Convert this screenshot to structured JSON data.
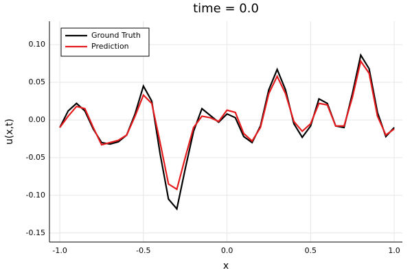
{
  "chart_data": {
    "type": "line",
    "title": "time = 0.0",
    "x_label": "x",
    "y_label": "u(x,t)",
    "x": [
      -1.0,
      -0.95,
      -0.9,
      -0.85,
      -0.8,
      -0.75,
      -0.7,
      -0.65,
      -0.6,
      -0.55,
      -0.5,
      -0.45,
      -0.4,
      -0.35,
      -0.3,
      -0.25,
      -0.2,
      -0.15,
      -0.1,
      -0.05,
      0.0,
      0.05,
      0.1,
      0.15,
      0.2,
      0.25,
      0.3,
      0.35,
      0.4,
      0.45,
      0.5,
      0.55,
      0.6,
      0.65,
      0.7,
      0.75,
      0.8,
      0.85,
      0.9,
      0.95,
      1.0
    ],
    "series": [
      {
        "name": "Ground Truth",
        "color": "#000000",
        "values": [
          -0.01,
          0.012,
          0.022,
          0.012,
          -0.012,
          -0.03,
          -0.032,
          -0.029,
          -0.02,
          0.008,
          0.045,
          0.025,
          -0.045,
          -0.105,
          -0.118,
          -0.065,
          -0.015,
          0.015,
          0.006,
          -0.003,
          0.008,
          0.003,
          -0.022,
          -0.03,
          -0.008,
          0.04,
          0.067,
          0.04,
          -0.005,
          -0.023,
          -0.008,
          0.028,
          0.022,
          -0.008,
          -0.01,
          0.035,
          0.086,
          0.068,
          0.01,
          -0.022,
          -0.01
        ]
      },
      {
        "name": "Prediction",
        "color": "#e41a1c",
        "values": [
          -0.01,
          0.005,
          0.018,
          0.015,
          -0.01,
          -0.033,
          -0.03,
          -0.027,
          -0.02,
          0.005,
          0.033,
          0.022,
          -0.03,
          -0.085,
          -0.092,
          -0.05,
          -0.01,
          0.005,
          0.003,
          -0.002,
          0.013,
          0.01,
          -0.018,
          -0.028,
          -0.01,
          0.035,
          0.058,
          0.035,
          -0.002,
          -0.015,
          -0.005,
          0.022,
          0.02,
          -0.008,
          -0.008,
          0.03,
          0.078,
          0.062,
          0.005,
          -0.02,
          -0.012
        ]
      }
    ],
    "xlim": [
      -1.062,
      1.049
    ],
    "ylim": [
      -0.162,
      0.131
    ],
    "xticks": [
      {
        "value": -1.0,
        "label": "-1.0"
      },
      -0.5,
      {
        "value": 0.0,
        "label": "0.0"
      },
      0.5,
      {
        "value": 1.0,
        "label": "1.0"
      }
    ],
    "yticks": [
      -0.15,
      {
        "value": -0.1,
        "label": "-0.10"
      },
      -0.05,
      {
        "value": 0.0,
        "label": "0.00"
      },
      0.05,
      {
        "value": 0.1,
        "label": "0.10"
      }
    ],
    "grid": true,
    "legend": "top-left"
  }
}
